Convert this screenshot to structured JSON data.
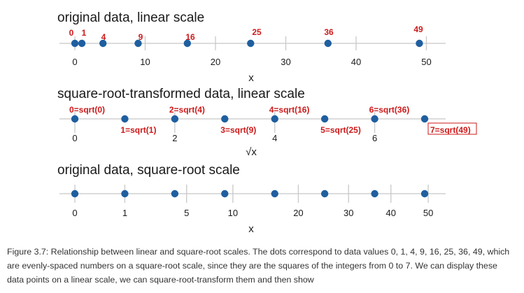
{
  "chart_data": [
    {
      "type": "scatter",
      "title": "original data, linear scale",
      "xlabel": "x",
      "scale": "linear",
      "xlim": [
        -1,
        52
      ],
      "x": [
        0,
        1,
        4,
        9,
        16,
        25,
        36,
        49
      ],
      "point_labels": [
        "0",
        "1",
        "4",
        "9",
        "16",
        "25",
        "36",
        "49"
      ],
      "ticks": [
        0,
        10,
        20,
        30,
        40,
        50
      ],
      "tick_labels": [
        "0",
        "10",
        "20",
        "30",
        "40",
        "50"
      ]
    },
    {
      "type": "scatter",
      "title": "square-root-transformed data, linear scale",
      "xlabel": "√x",
      "scale": "linear",
      "xlim": [
        -0.15,
        7.25
      ],
      "x": [
        0,
        1,
        2,
        3,
        4,
        5,
        6,
        7
      ],
      "point_labels": [
        "0=sqrt(0)",
        "1=sqrt(1)",
        "2=sqrt(4)",
        "3=sqrt(9)",
        "4=sqrt(16)",
        "5=sqrt(25)",
        "6=sqrt(36)",
        "7=sqrt(49)"
      ],
      "ticks": [
        0,
        2,
        4,
        6
      ],
      "tick_labels": [
        "0",
        "2",
        "4",
        "6"
      ]
    },
    {
      "type": "scatter",
      "title": "original data, square-root scale",
      "xlabel": "x",
      "scale": "sqrt",
      "xlim": [
        0,
        49
      ],
      "x": [
        0,
        1,
        4,
        9,
        16,
        25,
        36,
        49
      ],
      "ticks": [
        0,
        1,
        5,
        10,
        20,
        30,
        40,
        50
      ],
      "tick_labels": [
        "0",
        "1",
        "5",
        "10",
        "20",
        "30",
        "40",
        "50"
      ]
    }
  ],
  "colors": {
    "point": "#1f5fa0",
    "label": "#cc1a1a",
    "axis": "#c8c8c8",
    "text": "#1a1a1a"
  },
  "caption": "Figure 3.7: Relationship between linear and square-root scales. The dots correspond to data values 0, 1, 4, 9, 16, 25, 36, 49, which are evenly-spaced numbers on a square-root scale, since they are the squares of the integers from 0 to 7. We can display these data points on a linear scale, we can square-root-transform them and then show"
}
